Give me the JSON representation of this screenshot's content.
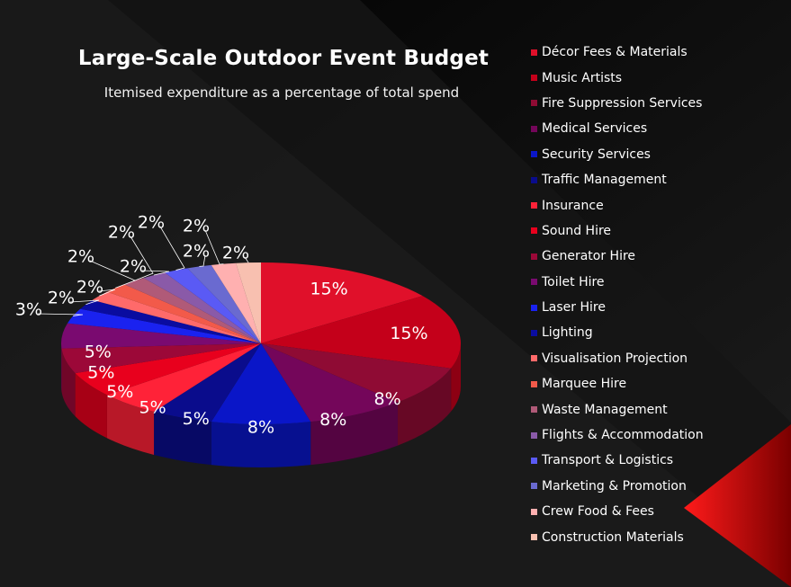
{
  "chart_data": {
    "type": "pie",
    "title": "Large-Scale Outdoor Event Budget",
    "subtitle": "Itemised expenditure as a percentage of total spend",
    "legend_position": "right",
    "slices": [
      {
        "name": "Décor Fees & Materials",
        "value": 15,
        "label": "15%",
        "color": "#e0102a"
      },
      {
        "name": "Music Artists",
        "value": 15,
        "label": "15%",
        "color": "#c4001a"
      },
      {
        "name": "Fire Suppression Services",
        "value": 8,
        "label": "8%",
        "color": "#8f0b34"
      },
      {
        "name": "Medical Services",
        "value": 8,
        "label": "8%",
        "color": "#74065a"
      },
      {
        "name": "Security Services",
        "value": 8,
        "label": "8%",
        "color": "#0a16c8"
      },
      {
        "name": "Traffic Management",
        "value": 5,
        "label": "5%",
        "color": "#0a0c8c"
      },
      {
        "name": "Insurance",
        "value": 5,
        "label": "5%",
        "color": "#ff2238"
      },
      {
        "name": "Sound Hire",
        "value": 5,
        "label": "5%",
        "color": "#e8001d"
      },
      {
        "name": "Generator Hire",
        "value": 5,
        "label": "5%",
        "color": "#9c0838"
      },
      {
        "name": "Toilet Hire",
        "value": 5,
        "label": "5%",
        "color": "#7a0a70"
      },
      {
        "name": "Laser Hire",
        "value": 3,
        "label": "3%",
        "color": "#1a22f0"
      },
      {
        "name": "Lighting",
        "value": 2,
        "label": "2%",
        "color": "#0a0ca0"
      },
      {
        "name": "Visualisation Projection",
        "value": 2,
        "label": "2%",
        "color": "#ff6a6a"
      },
      {
        "name": "Marquee Hire",
        "value": 2,
        "label": "2%",
        "color": "#f25a4a"
      },
      {
        "name": "Waste Management",
        "value": 2,
        "label": "2%",
        "color": "#b05a78"
      },
      {
        "name": "Flights & Accommodation",
        "value": 2,
        "label": "2%",
        "color": "#8a5aa8"
      },
      {
        "name": "Transport & Logistics",
        "value": 2,
        "label": "2%",
        "color": "#5a5af5"
      },
      {
        "name": "Marketing & Promotion",
        "value": 2,
        "label": "2%",
        "color": "#6a6ad0"
      },
      {
        "name": "Crew Food & Fees",
        "value": 2,
        "label": "2%",
        "color": "#ffb0b0"
      },
      {
        "name": "Construction Materials",
        "value": 2,
        "label": "2%",
        "color": "#f8c0b0"
      }
    ]
  }
}
